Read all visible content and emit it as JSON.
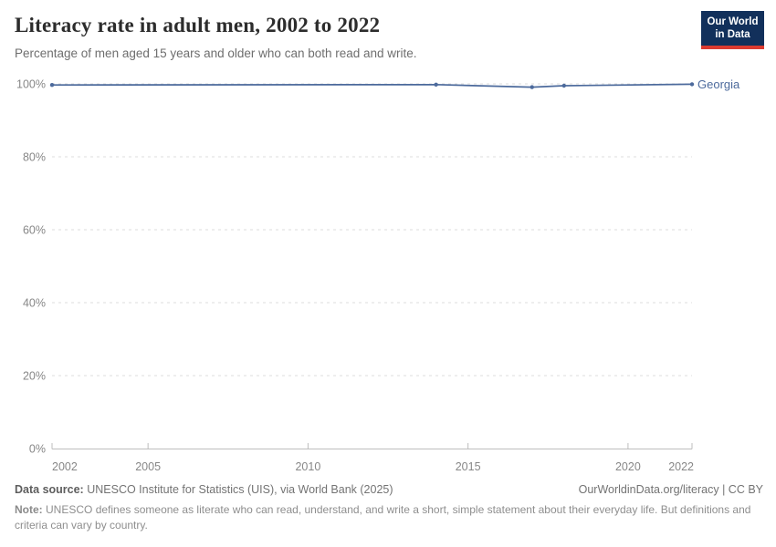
{
  "header": {
    "title": "Literacy rate in adult men, 2002 to 2022",
    "subtitle": "Percentage of men aged 15 years and older who can both read and write.",
    "logo": {
      "line1": "Our World",
      "line2": "in Data",
      "bg_color": "#12305b",
      "accent_color": "#dc3a30"
    }
  },
  "chart_data": {
    "type": "line",
    "title": "Literacy rate in adult men, 2002 to 2022",
    "subtitle": "Percentage of men aged 15 years and older who can both read and write.",
    "series": [
      {
        "name": "Georgia",
        "color": "#4c6a9c",
        "x": [
          2002,
          2014,
          2017,
          2018,
          2022
        ],
        "values": [
          99.7,
          99.8,
          99.1,
          99.5,
          99.9
        ]
      }
    ],
    "entity_label": "Georgia",
    "x_ticks": [
      2002,
      2005,
      2010,
      2015,
      2020,
      2022
    ],
    "y_ticks": [
      0,
      20,
      40,
      60,
      80,
      100
    ],
    "y_tick_suffix": "%",
    "xlim": [
      2002,
      2022
    ],
    "ylim": [
      0,
      100
    ],
    "grid": "dashed-horizontal",
    "legend_position": "end-of-line-label",
    "colors": {
      "grid": "#dcdcdc",
      "axis": "#bdbdbd",
      "tick_label": "#878787"
    }
  },
  "footer": {
    "data_source_label": "Data source:",
    "data_source": "UNESCO Institute for Statistics (UIS), via World Bank (2025)",
    "attribution": "OurWorldinData.org/literacy | CC BY",
    "note_label": "Note:",
    "note": "UNESCO defines someone as literate who can read, understand, and write a short, simple statement about their everyday life. But definitions and criteria can vary by country."
  }
}
